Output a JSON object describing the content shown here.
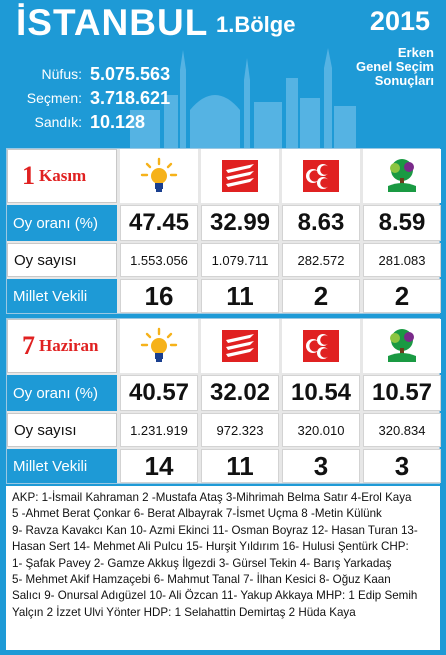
{
  "header": {
    "title": "İSTANBUL",
    "region": "1.Bölge",
    "year": "2015",
    "subtitle_lines": [
      "Erken",
      "Genel Seçim",
      "Sonuçları"
    ],
    "stats": [
      {
        "label": "Nüfus:",
        "value": "5.075.563"
      },
      {
        "label": "Seçmen:",
        "value": "3.718.621"
      },
      {
        "label": "Sandık:",
        "value": "10.128"
      }
    ]
  },
  "row_labels": {
    "rate": "Oy oranı (%)",
    "votes": "Oy sayısı",
    "mv": "Millet Vekili"
  },
  "parties": [
    {
      "icon": "akp-lightbulb-icon"
    },
    {
      "icon": "chp-arrows-icon"
    },
    {
      "icon": "mhp-crescents-icon"
    },
    {
      "icon": "hdp-tree-icon"
    }
  ],
  "elections": [
    {
      "num": "1",
      "month": "Kasım",
      "rates": [
        "47.45",
        "32.99",
        "8.63",
        "8.59"
      ],
      "votes": [
        "1.553.056",
        "1.079.711",
        "282.572",
        "281.083"
      ],
      "mv": [
        "16",
        "11",
        "2",
        "2"
      ]
    },
    {
      "num": "7",
      "month": "Haziran",
      "rates": [
        "40.57",
        "32.02",
        "10.54",
        "10.57"
      ],
      "votes": [
        "1.231.919",
        "972.323",
        "320.010",
        "320.834"
      ],
      "mv": [
        "14",
        "11",
        "3",
        "3"
      ]
    }
  ],
  "footer": {
    "lines": [
      "AKP: 1-İsmail Kahraman 2 -Mustafa Ataş 3-Mihrimah Belma Satır 4-Erol Kaya",
      "5 -Ahmet Berat Çonkar 6- Berat Albayrak 7-İsmet Uçma 8 -Metin Külünk",
      "9- Ravza Kavakcı Kan 10- Azmi Ekinci 11- Osman Boyraz 12- Hasan Turan 13-",
      "Hasan Sert 14- Mehmet Ali Pulcu 15- Hurşit Yıldırım 16- Hulusi Şentürk  CHP:",
      "1- Şafak Pavey  2- Gamze Akkuş İlgezdi  3- Gürsel Tekin  4- Barış Yarkadaş",
      "5- Mehmet Akif Hamzaçebi 6- Mahmut Tanal  7- İlhan Kesici  8- Oğuz Kaan",
      "Salıcı  9- Onursal Adıgüzel 10- Ali Özcan  11- Yakup Akkaya MHP: 1 Edip Semih",
      "Yalçın 2 İzzet Ulvi Yönter  HDP: 1 Selahattin Demirtaş 2 Hüda Kaya"
    ]
  },
  "colors": {
    "brand_blue": "#1e9ad6",
    "red": "#e02121",
    "panel_grey": "#e7e7e7"
  }
}
